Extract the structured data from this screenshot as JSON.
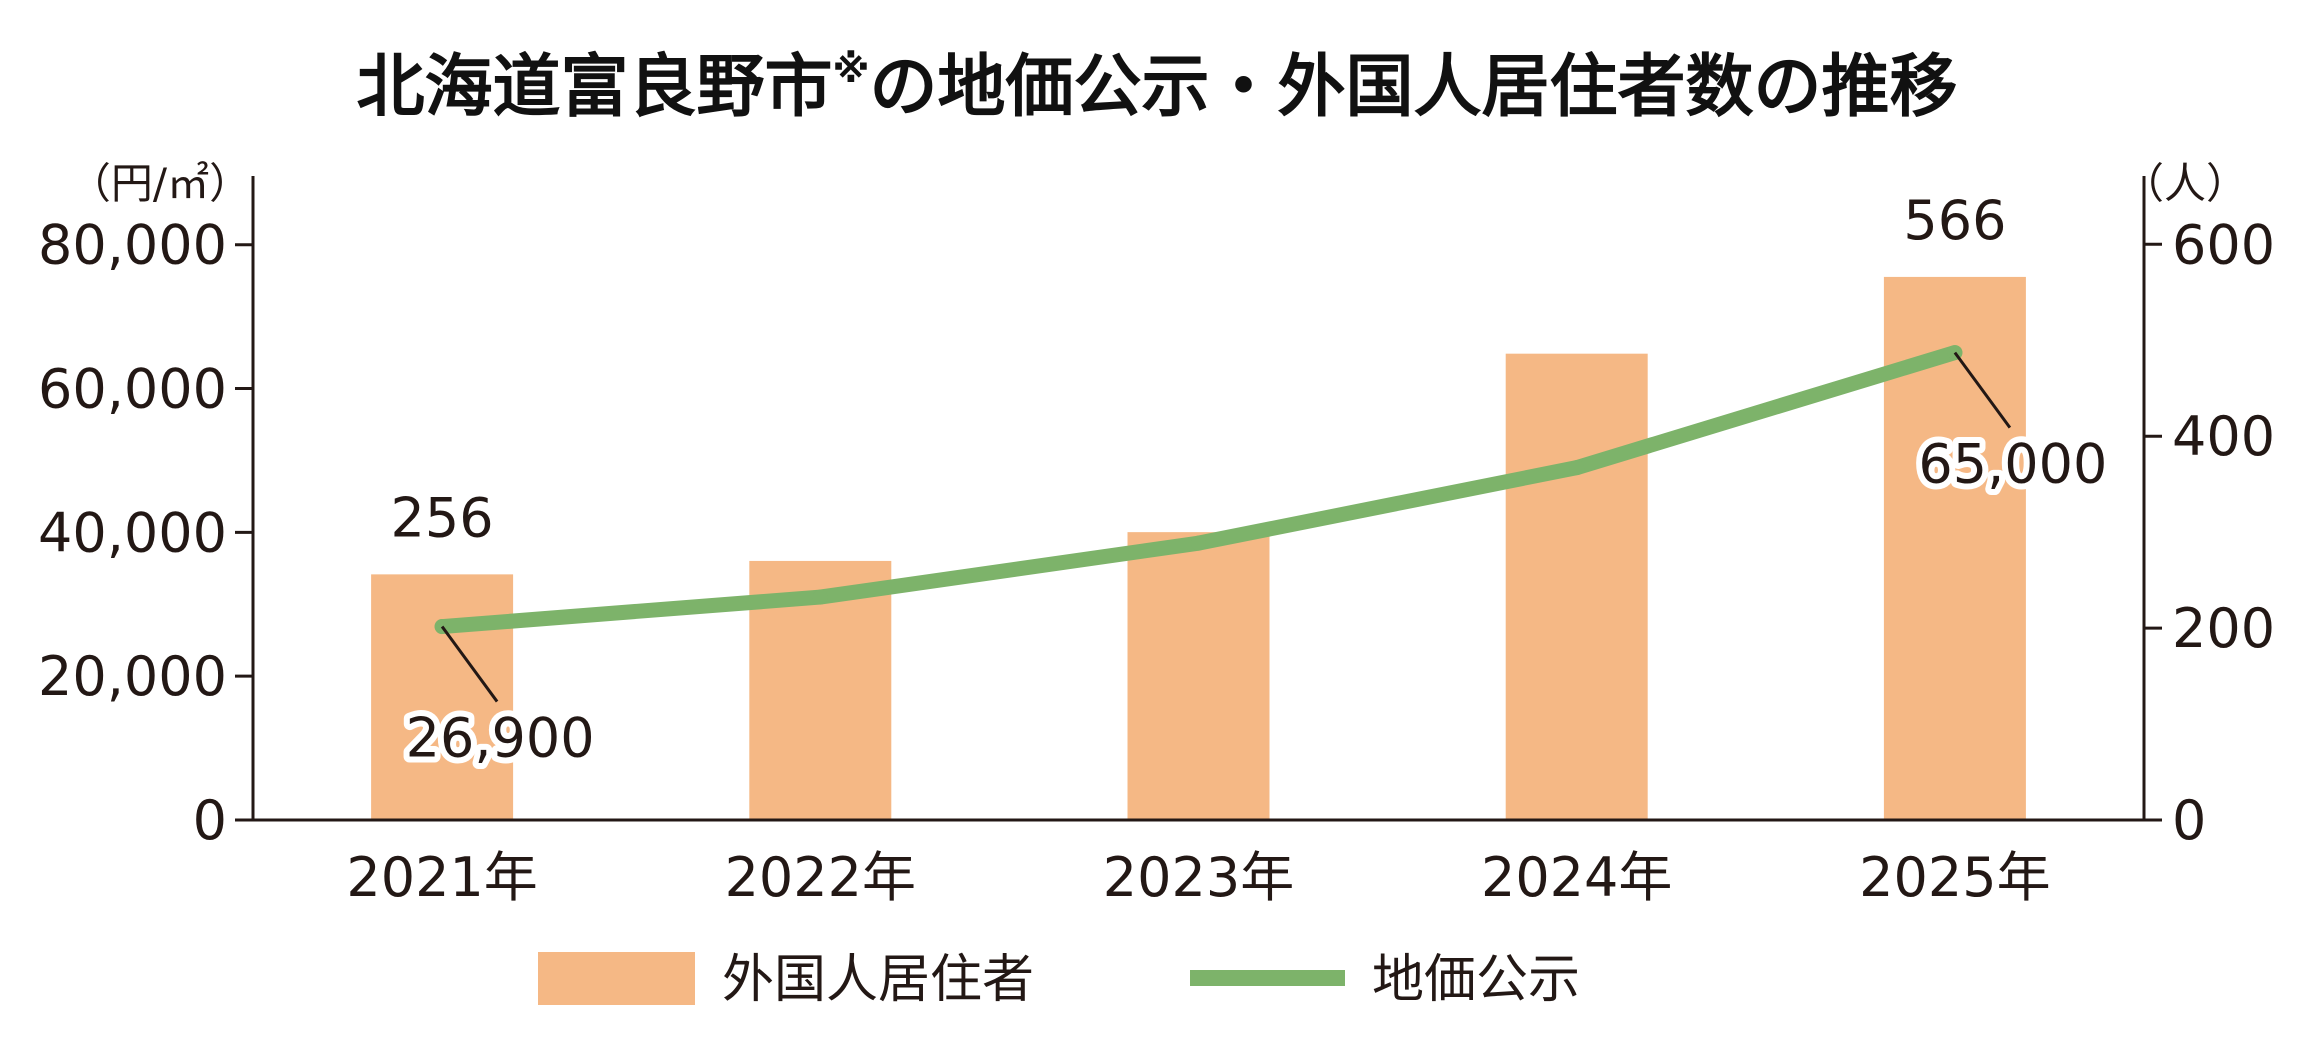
{
  "title": "北海道富良野市",
  "title_mark": "※",
  "title_rest": "の地価公示・外国人居住者数の推移",
  "colors": {
    "bar": "#F5B885",
    "line": "#7DB36A",
    "axis": "#231815",
    "text": "#231815"
  },
  "chart_data": {
    "type": "bar",
    "categories": [
      "2021年",
      "2022年",
      "2023年",
      "2024年",
      "2025年"
    ],
    "series": [
      {
        "name": "外国人居住者",
        "type": "bar",
        "axis": "right",
        "values": [
          256,
          270,
          300,
          486,
          566
        ]
      },
      {
        "name": "地価公示",
        "type": "line",
        "axis": "left",
        "values": [
          26900,
          31000,
          38500,
          49000,
          65000
        ]
      }
    ],
    "left_axis": {
      "unit": "（円/㎡）",
      "ylim": [
        0,
        89000
      ],
      "ticks": [
        0,
        20000,
        40000,
        60000,
        80000
      ],
      "tick_labels": [
        "0",
        "20,000",
        "40,000",
        "60,000",
        "80,000"
      ]
    },
    "right_axis": {
      "unit": "（人）",
      "ylim": [
        0,
        667
      ],
      "ticks": [
        0,
        200,
        400,
        600
      ],
      "tick_labels": [
        "0",
        "200",
        "400",
        "600"
      ]
    },
    "data_labels": {
      "bar": [
        {
          "index": 0,
          "text": "256"
        },
        {
          "index": 4,
          "text": "566"
        }
      ],
      "line": [
        {
          "index": 0,
          "text": "26,900"
        },
        {
          "index": 4,
          "text": "65,000"
        }
      ]
    },
    "legend": {
      "position": "bottom",
      "items": [
        {
          "label": "外国人居住者",
          "kind": "bar"
        },
        {
          "label": "地価公示",
          "kind": "line"
        }
      ]
    }
  }
}
